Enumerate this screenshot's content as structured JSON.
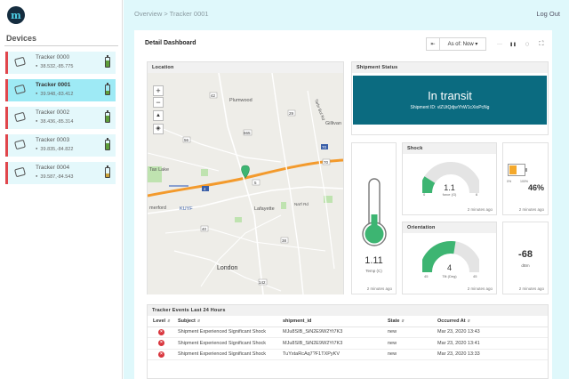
{
  "app": {
    "logo_letter": "m"
  },
  "sidebar": {
    "title": "Devices",
    "trackers": [
      {
        "name": "Tracker 0000",
        "coords": "38.532,-85.775",
        "selected": false
      },
      {
        "name": "Tracker 0001",
        "coords": "39.948,-83.412",
        "selected": true
      },
      {
        "name": "Tracker 0002",
        "coords": "38.436,-85.314",
        "selected": false
      },
      {
        "name": "Tracker 0003",
        "coords": "39.835,-84.822",
        "selected": false
      },
      {
        "name": "Tracker 0004",
        "coords": "39.587,-84.543",
        "selected": false
      }
    ]
  },
  "header": {
    "breadcrumb": "Overview > Tracker 0001",
    "logout": "Log Out"
  },
  "dashboard": {
    "title": "Detail Dashboard",
    "toolbar": {
      "back": "⇤",
      "as_of": "As of: Now ▾",
      "more": "···",
      "pause": "❚❚",
      "refresh": "◌",
      "fullscreen": "⛶"
    }
  },
  "location": {
    "title": "Location",
    "zoom_in": "+",
    "zoom_out": "−",
    "compass": "▲",
    "layers": "◈",
    "labels": [
      "Plumwood",
      "Gillivan",
      "Lafayette",
      "London",
      "Tax Lake",
      "merford",
      "KUYF",
      "Nat'l Rd",
      "Tarbr Bul Rd"
    ],
    "road_markers": [
      "42",
      "29",
      "4",
      "5",
      "56",
      "40",
      "70",
      "142",
      "38",
      "665"
    ]
  },
  "shipment_status": {
    "title": "Shipment Status",
    "status": "In transit",
    "shipment_id": "Shipment ID: vlZUtQdjwYhW1cXioPcNg",
    "ago": "2 minutes ago"
  },
  "temperature": {
    "value": "1.11",
    "label": "Temp (C)",
    "ago": "2 minutes ago",
    "fill_fraction": 0.25
  },
  "shock": {
    "title": "Shock",
    "value": "1.1",
    "label": "force (G)",
    "min": "0",
    "max": "6",
    "fraction": 0.18,
    "ago": "2 minutes ago"
  },
  "battery": {
    "value": "46%",
    "min": "0%",
    "max": "100%",
    "fraction": 0.46,
    "ago": "2 minutes ago"
  },
  "orientation": {
    "title": "Orientation",
    "value": "4",
    "label": "Tilt (Deg)",
    "min": "45",
    "max": "45",
    "fraction": 0.55,
    "ago": "2 minutes ago"
  },
  "signal": {
    "value": "-68",
    "unit": "dBm",
    "ago": "2 minutes ago"
  },
  "events": {
    "title": "Tracker Events Last 24 Hours",
    "columns": [
      "Level",
      "Subject",
      "shipment_id",
      "State",
      "Occurred At"
    ],
    "rows": [
      {
        "level": "×",
        "subject": "Shipment Experienced Significant Shock",
        "shipment_id": "MJu8SIB_SiN2E9W2Yt7K3",
        "state": "new",
        "occurred": "Mar 23, 2020 13:43"
      },
      {
        "level": "×",
        "subject": "Shipment Experienced Significant Shock",
        "shipment_id": "MJu8SIB_SiN2E9W2Yt7K3",
        "state": "new",
        "occurred": "Mar 23, 2020 13:41"
      },
      {
        "level": "×",
        "subject": "Shipment Experienced Significant Shock",
        "shipment_id": "TuYxtaRcAq7?F1TXPyKV",
        "state": "new",
        "occurred": "Mar 23, 2020 13:33"
      }
    ]
  },
  "colors": {
    "accent": "#0b6b80",
    "gauge_green": "#3db572",
    "status_error": "#d9363e",
    "selected_row": "#9eeaf5",
    "sidebar_bar": "#e0464c"
  }
}
